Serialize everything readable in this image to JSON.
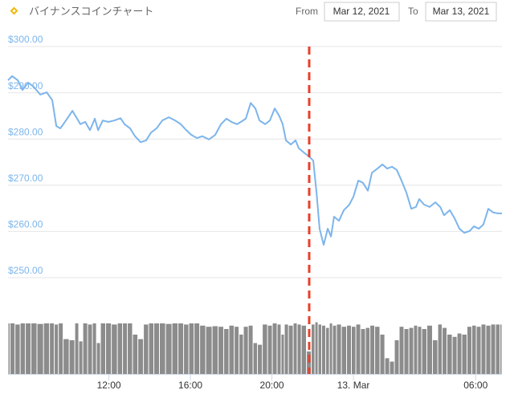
{
  "header": {
    "title": "バイナンスコインチャート",
    "from_label": "From",
    "from_date": "Mar 12, 2021",
    "to_label": "To",
    "to_date": "Mar 13, 2021"
  },
  "chart_data": {
    "type": "line",
    "x": [
      7.05,
      7.25,
      7.53,
      7.76,
      8.04,
      8.31,
      8.63,
      8.95,
      9.22,
      9.42,
      9.62,
      9.89,
      10.21,
      10.44,
      10.6,
      10.84,
      11.07,
      11.31,
      11.47,
      11.7,
      11.98,
      12.26,
      12.57,
      12.77,
      13.04,
      13.28,
      13.56,
      13.83,
      14.07,
      14.34,
      14.62,
      14.94,
      15.25,
      15.53,
      15.8,
      16.04,
      16.32,
      16.59,
      16.91,
      17.22,
      17.5,
      17.77,
      18.01,
      18.29,
      18.48,
      18.72,
      18.96,
      19.19,
      19.39,
      19.67,
      19.9,
      20.14,
      20.37,
      20.53,
      20.69,
      20.93,
      21.16,
      21.32,
      21.56,
      21.83,
      22.03,
      22.19,
      22.34,
      22.54,
      22.74,
      22.9,
      23.05,
      23.29,
      23.53,
      23.8,
      24.0,
      24.24,
      24.47,
      24.71,
      24.91,
      25.18,
      25.42,
      25.66,
      25.89,
      26.13,
      26.36,
      26.6,
      26.84,
      27.07,
      27.23,
      27.47,
      27.74,
      28.02,
      28.26,
      28.45,
      28.73,
      28.97,
      29.2,
      29.44,
      29.71,
      29.91,
      30.15,
      30.38,
      30.62,
      30.86,
      31.09,
      31.29
    ],
    "series": [
      {
        "color": "#7cb5ec",
        "values": [
          292.7,
          293.6,
          292.7,
          290.6,
          292.2,
          291.3,
          289.6,
          290.1,
          288.4,
          282.8,
          282.3,
          284.0,
          286.1,
          284.4,
          283.2,
          283.7,
          281.9,
          284.4,
          281.9,
          284.0,
          283.7,
          284.0,
          284.5,
          283.2,
          282.3,
          280.6,
          279.3,
          279.7,
          281.4,
          282.3,
          284.0,
          284.7,
          284.0,
          283.2,
          281.9,
          280.9,
          280.2,
          280.6,
          279.9,
          280.9,
          283.2,
          284.4,
          283.7,
          283.2,
          283.7,
          284.4,
          287.8,
          286.6,
          284.0,
          283.2,
          284.0,
          286.6,
          284.9,
          283.2,
          279.7,
          278.8,
          279.7,
          278.0,
          277.1,
          276.2,
          275.3,
          268.4,
          260.6,
          257.1,
          260.6,
          258.9,
          263.2,
          262.3,
          264.6,
          265.8,
          267.5,
          271.0,
          270.5,
          268.8,
          272.7,
          273.6,
          274.5,
          273.6,
          274.0,
          273.3,
          271.0,
          268.4,
          264.9,
          265.3,
          267.0,
          265.8,
          265.3,
          266.3,
          265.3,
          263.5,
          264.6,
          262.8,
          260.6,
          259.7,
          260.1,
          261.1,
          260.6,
          261.5,
          264.9,
          264.1,
          263.9,
          263.9
        ]
      }
    ],
    "volume": {
      "color": "#8c8c8c",
      "vlim": [
        0,
        100
      ],
      "values": [
        90,
        90,
        88,
        90,
        90,
        90,
        89,
        90,
        90,
        88,
        90,
        62,
        60,
        90,
        58,
        90,
        88,
        90,
        55,
        90,
        90,
        88,
        90,
        90,
        90,
        70,
        62,
        88,
        90,
        90,
        90,
        89,
        90,
        90,
        88,
        90,
        90,
        86,
        84,
        85,
        84,
        80,
        86,
        84,
        70,
        84,
        86,
        55,
        52,
        88,
        86,
        90,
        88,
        70,
        88,
        86,
        90,
        88,
        86,
        40,
        88,
        92,
        88,
        86,
        82,
        90,
        86,
        88,
        84,
        86,
        84,
        88,
        80,
        82,
        86,
        84,
        70,
        28,
        22,
        60,
        84,
        80,
        82,
        86,
        84,
        80,
        86,
        60,
        88,
        82,
        70,
        66,
        72,
        70,
        84,
        86,
        84,
        88,
        86,
        88,
        88,
        88
      ]
    },
    "xlim": [
      7.05,
      31.29
    ],
    "xticks": [
      {
        "value": 12,
        "label": "12:00"
      },
      {
        "value": 16,
        "label": "16:00"
      },
      {
        "value": 20,
        "label": "20:00"
      },
      {
        "value": 24,
        "label": "13. Mar"
      },
      {
        "value": 30,
        "label": "06:00"
      }
    ],
    "ylim": [
      250,
      300
    ],
    "yticks": [
      {
        "value": 250,
        "label": "$250.00"
      },
      {
        "value": 260,
        "label": "$260.00"
      },
      {
        "value": 270,
        "label": "$270.00"
      },
      {
        "value": 280,
        "label": "$280.00"
      },
      {
        "value": 290,
        "label": "$290.00"
      },
      {
        "value": 300,
        "label": "$300.00"
      }
    ],
    "grid": true,
    "annotation_x": 21.83,
    "annotation_color": "#e8402a"
  }
}
